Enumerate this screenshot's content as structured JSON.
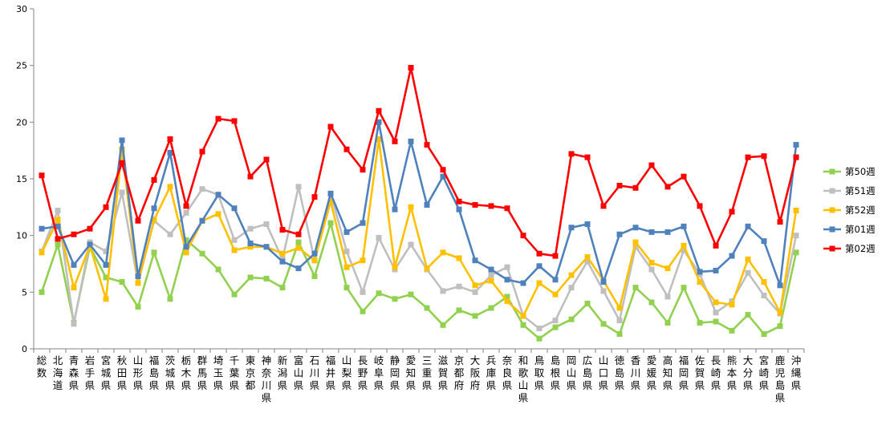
{
  "chart_data": {
    "type": "line",
    "title": "",
    "xlabel": "",
    "ylabel": "",
    "ylim": [
      0,
      30
    ],
    "yticks": [
      0,
      5,
      10,
      15,
      20,
      25,
      30
    ],
    "grid": false,
    "legend_position": "right",
    "categories": [
      "総数",
      "北海道",
      "青森県",
      "岩手県",
      "宮城県",
      "秋田県",
      "山形県",
      "福島県",
      "茨城県",
      "栃木県",
      "群馬県",
      "埼玉県",
      "千葉県",
      "東京都",
      "神奈川県",
      "新潟県",
      "富山県",
      "石川県",
      "福井県",
      "山梨県",
      "長野県",
      "岐阜県",
      "静岡県",
      "愛知県",
      "三重県",
      "滋賀県",
      "京都府",
      "大阪府",
      "兵庫県",
      "奈良県",
      "和歌山県",
      "鳥取県",
      "島根県",
      "岡山県",
      "広島県",
      "山口県",
      "徳島県",
      "香川県",
      "愛媛県",
      "高知県",
      "福岡県",
      "佐賀県",
      "長崎県",
      "熊本県",
      "大分県",
      "宮崎県",
      "鹿児島県",
      "沖縄県"
    ],
    "series": [
      {
        "name": "第50週",
        "color": "#92d050",
        "marker": "square",
        "values": [
          5.0,
          9.2,
          2.3,
          9.0,
          6.3,
          5.9,
          3.7,
          8.5,
          4.4,
          9.6,
          8.4,
          7.0,
          4.8,
          6.3,
          6.2,
          5.4,
          9.4,
          6.4,
          11.1,
          5.4,
          3.3,
          4.9,
          4.4,
          4.8,
          3.6,
          2.1,
          3.4,
          2.9,
          3.6,
          4.6,
          2.1,
          0.9,
          1.9,
          2.6,
          4.0,
          2.2,
          1.3,
          5.4,
          4.1,
          2.3,
          5.4,
          2.3,
          2.4,
          1.6,
          3.0,
          1.3,
          2.0,
          8.5
        ]
      },
      {
        "name": "第51週",
        "color": "#bfbfbf",
        "marker": "square",
        "values": [
          8.6,
          12.2,
          2.2,
          9.4,
          8.6,
          13.8,
          5.8,
          11.3,
          10.1,
          12.0,
          14.1,
          13.6,
          9.6,
          10.6,
          11.0,
          7.9,
          14.3,
          7.8,
          13.7,
          8.6,
          5.0,
          9.8,
          7.0,
          9.2,
          7.0,
          5.1,
          5.5,
          5.0,
          6.5,
          7.2,
          2.9,
          1.8,
          2.5,
          5.4,
          7.7,
          5.1,
          2.5,
          9.0,
          7.0,
          4.6,
          8.7,
          6.6,
          3.2,
          4.2,
          6.7,
          4.7,
          3.1,
          10.0
        ]
      },
      {
        "name": "第52週",
        "color": "#ffc000",
        "marker": "square",
        "values": [
          8.5,
          11.4,
          5.4,
          9.1,
          4.4,
          17.6,
          5.8,
          11.4,
          14.3,
          8.5,
          11.3,
          11.9,
          8.7,
          9.0,
          9.0,
          8.4,
          8.9,
          7.8,
          13.0,
          7.2,
          7.8,
          18.5,
          7.2,
          12.5,
          7.1,
          8.5,
          8.0,
          5.6,
          6.0,
          4.2,
          2.9,
          5.8,
          4.8,
          6.5,
          8.1,
          6.0,
          3.6,
          9.4,
          7.6,
          7.1,
          9.1,
          5.9,
          4.1,
          3.9,
          7.9,
          5.9,
          3.2,
          12.2
        ]
      },
      {
        "name": "第01週",
        "color": "#4f81bd",
        "marker": "square",
        "values": [
          10.6,
          10.8,
          7.4,
          9.2,
          7.4,
          18.4,
          6.4,
          12.4,
          17.3,
          9.0,
          11.3,
          13.6,
          12.4,
          9.3,
          9.0,
          7.7,
          7.1,
          8.4,
          13.7,
          10.3,
          11.1,
          20.0,
          12.3,
          18.3,
          12.7,
          15.2,
          12.3,
          7.8,
          7.0,
          6.1,
          5.8,
          7.3,
          6.1,
          10.7,
          11.0,
          5.9,
          10.1,
          10.7,
          10.3,
          10.3,
          10.8,
          6.8,
          6.9,
          8.2,
          10.8,
          9.5,
          5.6,
          18.0
        ]
      },
      {
        "name": "第02週",
        "color": "#ff0000",
        "marker": "square",
        "values": [
          15.3,
          9.7,
          10.1,
          10.6,
          12.5,
          16.4,
          11.3,
          14.9,
          18.5,
          12.6,
          17.4,
          20.3,
          20.1,
          15.2,
          16.7,
          10.5,
          10.1,
          13.4,
          19.6,
          17.6,
          15.8,
          21.0,
          18.3,
          24.8,
          18.0,
          15.8,
          13.0,
          12.7,
          12.6,
          12.4,
          10.0,
          8.4,
          8.2,
          17.2,
          16.9,
          12.6,
          14.4,
          14.2,
          16.2,
          14.3,
          15.2,
          12.6,
          9.1,
          12.1,
          16.9,
          17.0,
          11.2,
          16.9
        ]
      }
    ]
  }
}
